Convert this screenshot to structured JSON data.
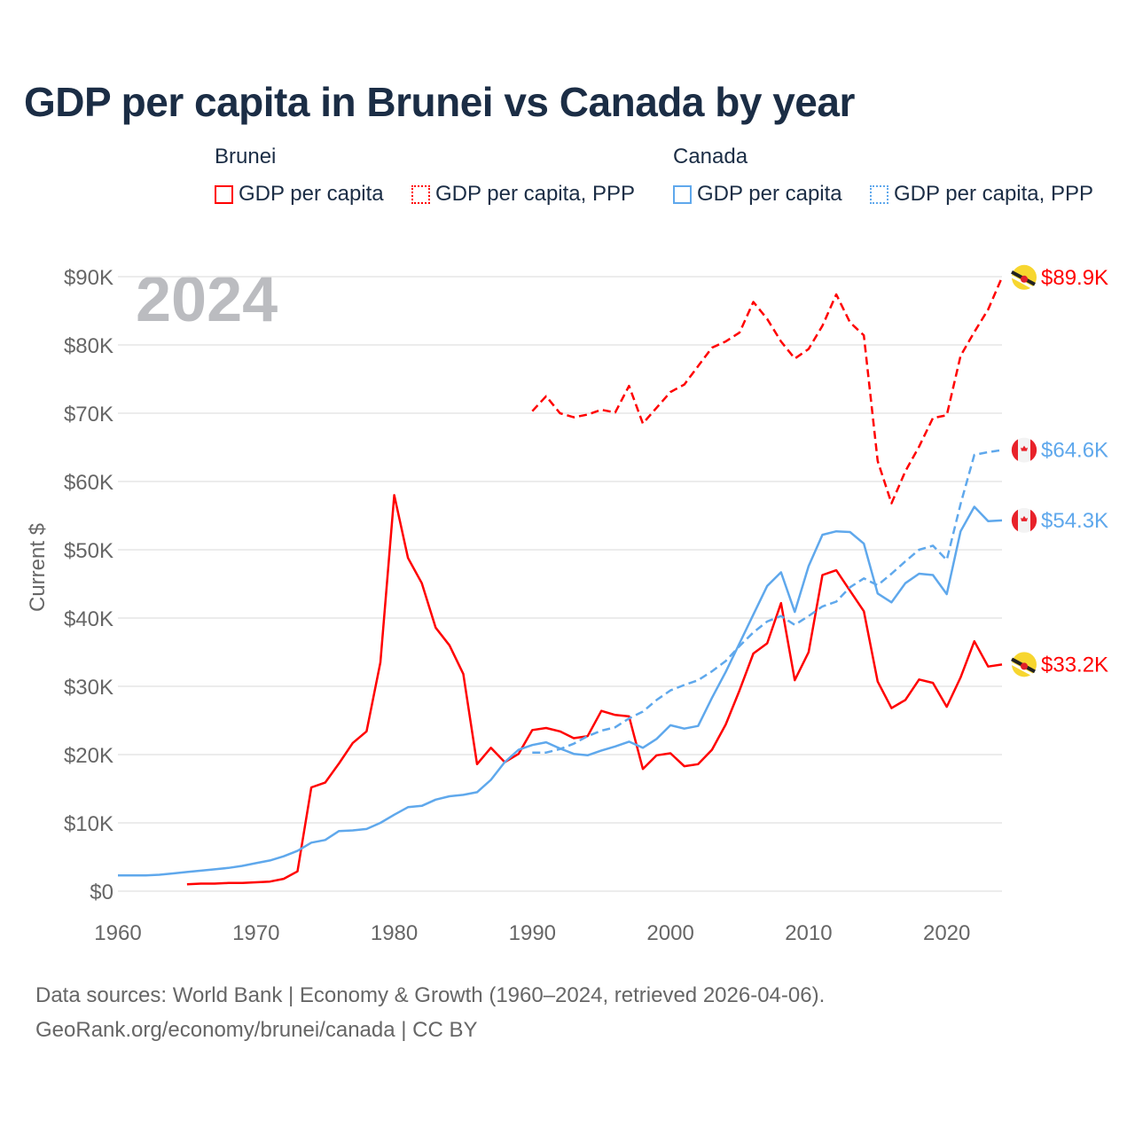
{
  "chart_data": {
    "type": "line",
    "title": "GDP per capita in Brunei vs Canada by year",
    "ylabel": "Current $",
    "xlabel": "",
    "year_watermark": "2024",
    "xlim": [
      1960,
      2024
    ],
    "ylim": [
      0,
      90000
    ],
    "x_ticks": [
      "1960",
      "1970",
      "1980",
      "1990",
      "2000",
      "2010",
      "2020"
    ],
    "y_ticks": [
      "$0",
      "$10K",
      "$20K",
      "$30K",
      "$40K",
      "$50K",
      "$60K",
      "$70K",
      "$80K",
      "$90K"
    ],
    "legend": {
      "groups": [
        {
          "name": "Brunei",
          "items": [
            "GDP per capita",
            "GDP per capita, PPP"
          ]
        },
        {
          "name": "Canada",
          "items": [
            "GDP per capita",
            "GDP per capita, PPP"
          ]
        }
      ]
    },
    "grid": true,
    "series": [
      {
        "name": "Brunei GDP per capita",
        "country": "Brunei",
        "color": "#ff0000",
        "dashed": false,
        "start": 1965,
        "end_label": "$33.2K",
        "values": [
          1.0,
          1.1,
          1.1,
          1.2,
          1.2,
          1.3,
          1.4,
          1.8,
          2.9,
          15.2,
          15.9,
          18.7,
          21.7,
          23.4,
          33.5,
          58.0,
          48.8,
          45.1,
          38.6,
          36.0,
          31.8,
          18.6,
          21.0,
          18.9,
          20.1,
          23.6,
          23.9,
          23.4,
          22.4,
          22.7,
          26.4,
          25.8,
          25.6,
          17.9,
          19.9,
          20.2,
          18.3,
          18.6,
          20.7,
          24.4,
          29.4,
          34.8,
          36.3,
          42.2,
          30.9,
          35.0,
          46.3,
          47.0,
          44.0,
          41.0,
          30.7,
          26.8,
          28.0,
          31.0,
          30.5,
          27.0,
          31.3,
          36.6,
          32.9,
          33.2
        ]
      },
      {
        "name": "Brunei GDP per capita, PPP",
        "country": "Brunei",
        "color": "#ff0000",
        "dashed": true,
        "start": 1990,
        "end_label": "$89.9K",
        "values": [
          70.3,
          72.5,
          70.0,
          69.4,
          69.8,
          70.5,
          70.1,
          74.0,
          68.5,
          70.8,
          73.1,
          74.2,
          76.9,
          79.6,
          80.5,
          81.8,
          86.3,
          83.8,
          80.5,
          78.0,
          79.4,
          82.8,
          87.4,
          83.3,
          81.4,
          63.0,
          56.8,
          61.5,
          65.1,
          69.3,
          69.7,
          78.4,
          81.9,
          85.2,
          89.9
        ]
      },
      {
        "name": "Canada GDP per capita",
        "country": "Canada",
        "color": "#5fa8ec",
        "dashed": false,
        "start": 1960,
        "end_label": "$54.3K",
        "values": [
          2.3,
          2.3,
          2.3,
          2.4,
          2.6,
          2.8,
          3.0,
          3.2,
          3.4,
          3.7,
          4.1,
          4.5,
          5.1,
          5.9,
          7.1,
          7.5,
          8.8,
          8.9,
          9.1,
          10.0,
          11.2,
          12.3,
          12.5,
          13.4,
          13.9,
          14.1,
          14.5,
          16.3,
          18.9,
          20.7,
          21.4,
          21.8,
          20.9,
          20.1,
          19.9,
          20.6,
          21.2,
          21.9,
          21.0,
          22.3,
          24.3,
          23.8,
          24.2,
          28.3,
          32.1,
          36.3,
          40.5,
          44.7,
          46.7,
          40.9,
          47.6,
          52.2,
          52.7,
          52.6,
          50.9,
          43.6,
          42.3,
          45.1,
          46.5,
          46.3,
          43.5,
          52.7,
          56.3,
          54.2,
          54.3
        ]
      },
      {
        "name": "Canada GDP per capita, PPP",
        "country": "Canada",
        "color": "#5fa8ec",
        "dashed": true,
        "start": 1990,
        "end_label": "$64.6K",
        "values": [
          20.3,
          20.3,
          20.8,
          21.6,
          22.7,
          23.5,
          24.0,
          25.3,
          26.3,
          28.0,
          29.4,
          30.2,
          30.9,
          32.2,
          33.7,
          35.9,
          37.9,
          39.5,
          40.3,
          39.0,
          40.3,
          41.7,
          42.4,
          44.5,
          45.8,
          44.8,
          46.5,
          48.3,
          50.0,
          50.6,
          48.5,
          56.7,
          63.9,
          64.3,
          64.6
        ]
      }
    ],
    "value_unit": "thousand USD"
  },
  "footer": {
    "line1": "Data sources: World Bank | Economy & Growth (1960–2024, retrieved 2026-04-06).",
    "line2": "GeoRank.org/economy/brunei/canada | CC BY"
  }
}
